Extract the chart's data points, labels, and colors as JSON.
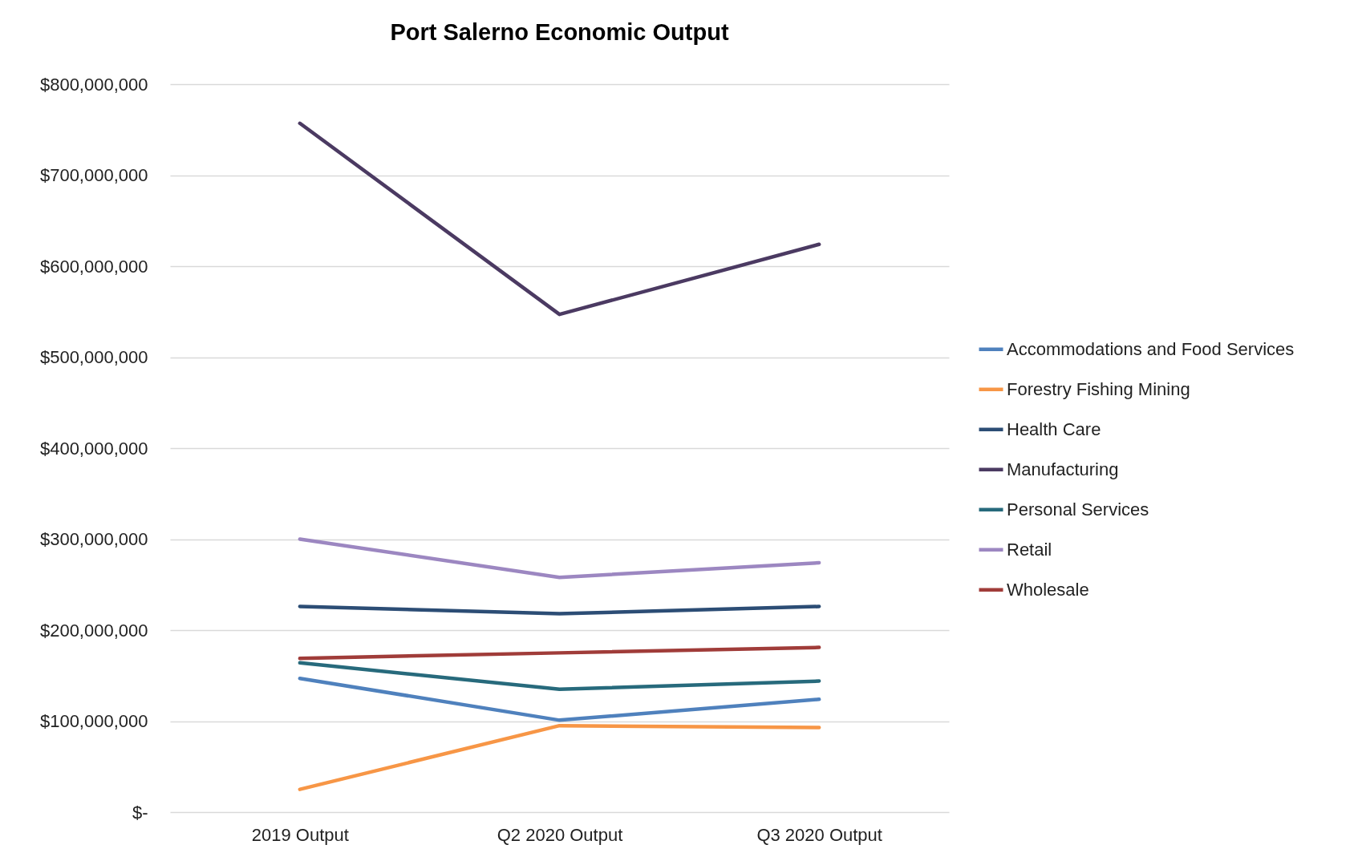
{
  "chart_data": {
    "type": "line",
    "title": "Port Salerno Economic Output",
    "categories": [
      "2019 Output",
      "Q2 2020 Output",
      "Q3 2020 Output"
    ],
    "series": [
      {
        "name": "Accommodations and Food Services",
        "color": "#4f81bd",
        "values": [
          147000000,
          101000000,
          124000000
        ]
      },
      {
        "name": "Forestry Fishing Mining",
        "color": "#f79646",
        "values": [
          25000000,
          95000000,
          93000000
        ]
      },
      {
        "name": "Health Care",
        "color": "#2c4d75",
        "values": [
          226000000,
          218000000,
          226000000
        ]
      },
      {
        "name": "Manufacturing",
        "color": "#4b3a62",
        "values": [
          757000000,
          547000000,
          624000000
        ]
      },
      {
        "name": "Personal Services",
        "color": "#276a7c",
        "values": [
          164000000,
          135000000,
          144000000
        ]
      },
      {
        "name": "Retail",
        "color": "#9c87c1",
        "values": [
          300000000,
          258000000,
          274000000
        ]
      },
      {
        "name": "Wholesale",
        "color": "#a03c39",
        "values": [
          169000000,
          175000000,
          181000000
        ]
      }
    ],
    "ylim": [
      0,
      800000000
    ],
    "yticks": [
      {
        "value": 0,
        "label": "$-"
      },
      {
        "value": 100000000,
        "label": "$100,000,000"
      },
      {
        "value": 200000000,
        "label": "$200,000,000"
      },
      {
        "value": 300000000,
        "label": "$300,000,000"
      },
      {
        "value": 400000000,
        "label": "$400,000,000"
      },
      {
        "value": 500000000,
        "label": "$500,000,000"
      },
      {
        "value": 600000000,
        "label": "$600,000,000"
      },
      {
        "value": 700000000,
        "label": "$700,000,000"
      },
      {
        "value": 800000000,
        "label": "$800,000,000"
      }
    ],
    "grid": "y",
    "legend": "right",
    "marker": "none",
    "line_style": "solid"
  }
}
